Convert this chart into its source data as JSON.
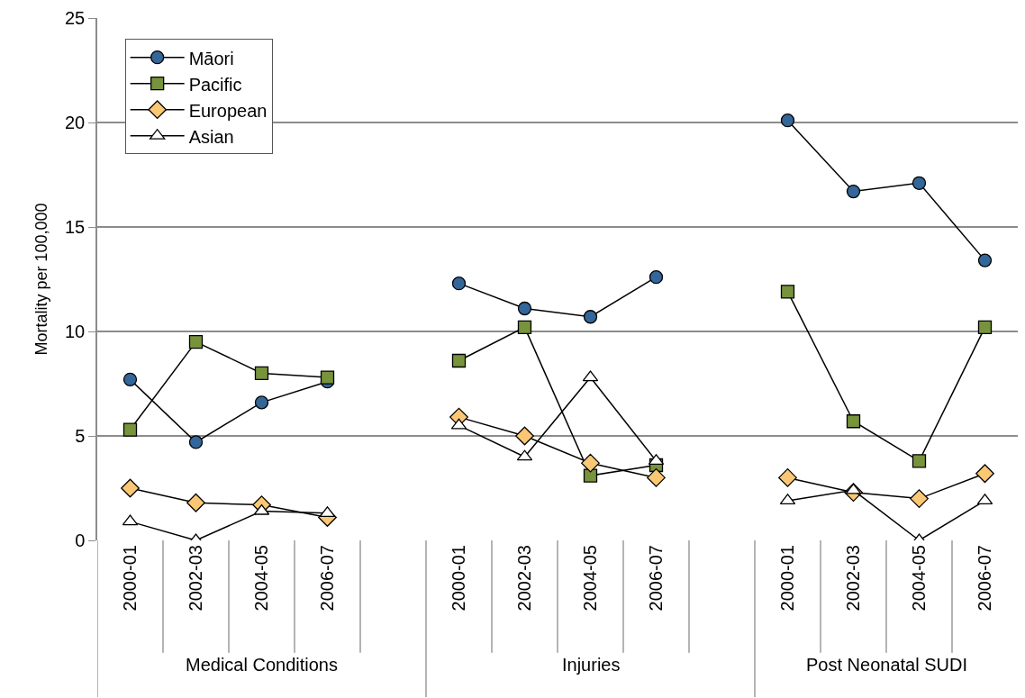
{
  "chart_data": {
    "type": "line",
    "ylabel": "Mortality per 100,000",
    "categories": [
      "2000-01",
      "2002-03",
      "2004-05",
      "2006-07",
      null,
      "2000-01",
      "2002-03",
      "2004-05",
      "2006-07",
      null,
      "2000-01",
      "2002-03",
      "2004-05",
      "2006-07"
    ],
    "annotations": [
      "Medical Conditions",
      "Injuries",
      "Post Neonatal SUDI"
    ],
    "series": [
      {
        "name": "Māori",
        "color": "#336699",
        "marker": "circle",
        "values": [
          7.7,
          4.7,
          6.6,
          7.6,
          null,
          12.3,
          11.1,
          10.7,
          12.6,
          null,
          20.1,
          16.7,
          17.1,
          13.4
        ]
      },
      {
        "name": "Pacific",
        "color": "#77933c",
        "marker": "square",
        "values": [
          5.3,
          9.5,
          8.0,
          7.8,
          null,
          8.6,
          10.2,
          3.1,
          3.6,
          null,
          11.9,
          5.7,
          3.8,
          10.2
        ]
      },
      {
        "name": "European",
        "color": "#fac775",
        "marker": "diamond",
        "values": [
          2.5,
          1.8,
          1.7,
          1.1,
          null,
          5.9,
          5.0,
          3.7,
          3.0,
          null,
          3.0,
          2.3,
          2.0,
          3.2
        ]
      },
      {
        "name": "Asian",
        "color": "#ffffff",
        "marker": "triangle",
        "values": [
          0.9,
          0,
          1.4,
          1.3,
          null,
          5.5,
          4.0,
          7.8,
          3.8,
          null,
          1.9,
          2.4,
          0,
          1.9
        ]
      }
    ],
    "ylim": [
      0,
      25
    ],
    "yticks": [
      0,
      5,
      10,
      15,
      20,
      25
    ],
    "grid": "y",
    "legend": "top left",
    "line_style": "solid"
  }
}
